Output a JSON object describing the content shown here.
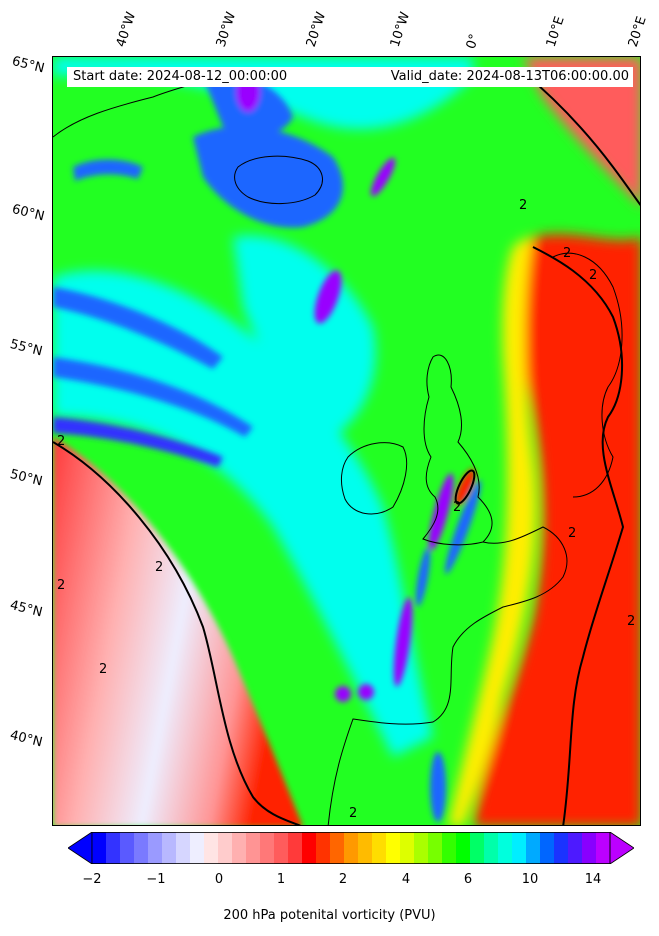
{
  "header": {
    "start_date": "Start date: 2024-08-12_00:00:00",
    "valid_date": "Valid_date: 2024-08-13T06:00:00.00"
  },
  "longitude_labels": [
    "40°W",
    "30°W",
    "20°W",
    "10°W",
    "0°",
    "10°E",
    "20°E"
  ],
  "latitude_labels": [
    "65°N",
    "60°N",
    "55°N",
    "50°N",
    "45°N",
    "40°N"
  ],
  "colorbar": {
    "title": "200 hPa potenital vorticity (PVU)",
    "ticks": [
      "−2",
      "−1",
      "0",
      "1",
      "2",
      "4",
      "6",
      "10",
      "14"
    ],
    "colors": [
      "#0000ff",
      "#3333ff",
      "#5a5aff",
      "#7a7aff",
      "#9a9aff",
      "#b8b8ff",
      "#d6d6ff",
      "#eeeeff",
      "#ffe4e4",
      "#ffcccc",
      "#ffb0b0",
      "#ff9494",
      "#ff7878",
      "#ff5c5c",
      "#ff3a3a",
      "#ff0000",
      "#ff3300",
      "#ff6600",
      "#ff9900",
      "#ffbb00",
      "#ffdd00",
      "#ffff00",
      "#ddff00",
      "#aaff00",
      "#77ff00",
      "#33ff00",
      "#00ff00",
      "#00ff66",
      "#00ffaa",
      "#00ffdd",
      "#00eeff",
      "#00aaff",
      "#0066ff",
      "#1a33ff",
      "#4d1aff",
      "#8800ff",
      "#bb00ff"
    ],
    "extend_low_color": "#0000ff",
    "extend_high_color": "#bb00ff"
  },
  "map_colors": {
    "background_green": "#22ff22",
    "cyan": "#00ffee",
    "blue": "#1a66ff",
    "purple": "#9900ff",
    "red": "#ff2200",
    "light_red": "#ff9999",
    "white": "#f4f4ff",
    "yellow": "#ffee00",
    "orange": "#ff8800",
    "coast": "#000000"
  },
  "contour_label": "2"
}
